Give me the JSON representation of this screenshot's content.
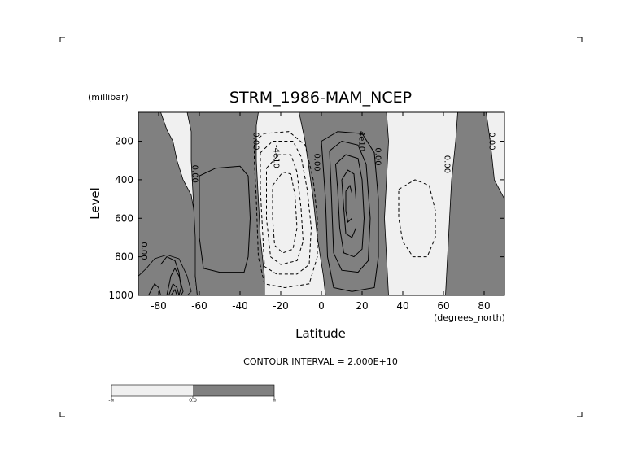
{
  "title": "STRM_1986-MAM_NCEP",
  "y_unit_label": "(millibar)",
  "x_unit_label": "(degrees_north)",
  "xlabel": "Latitude",
  "ylabel": "Level",
  "footer_text": "CONTOUR INTERVAL = 2.000E+10",
  "colors": {
    "positive_fill": "#808080",
    "negative_fill": "#f0f0f0",
    "line": "#000000"
  },
  "colorbar": {
    "labels": [
      "-∞",
      "0.0",
      "∞"
    ]
  },
  "chart_data": {
    "type": "contour",
    "title": "STRM_1986-MAM_NCEP",
    "xlabel": "Latitude",
    "ylabel": "Level",
    "x_units": "(degrees_north)",
    "y_units": "(millibar)",
    "xlim": [
      -90,
      90
    ],
    "ylim": [
      1000,
      50
    ],
    "x_ticks": [
      -80,
      -60,
      -40,
      -20,
      0,
      20,
      40,
      60,
      80
    ],
    "x_tick_labels": [
      "-80",
      "-60",
      "-40",
      "-20",
      "0",
      "20",
      "40",
      "60",
      "80"
    ],
    "y_ticks": [
      200,
      400,
      600,
      800,
      1000
    ],
    "y_tick_labels": [
      "200",
      "400",
      "600",
      "800",
      "1000"
    ],
    "contour_interval": 20000000000.0,
    "contour_labels": [
      {
        "text": "0.00",
        "lat": -62,
        "lev": 370
      },
      {
        "text": "0.00",
        "lat": -32,
        "lev": 200
      },
      {
        "text": "-4e10",
        "lat": -22,
        "lev": 280
      },
      {
        "text": "0.00",
        "lat": -2,
        "lev": 310
      },
      {
        "text": "4e10",
        "lat": 20,
        "lev": 200
      },
      {
        "text": "0.00",
        "lat": 28,
        "lev": 280
      },
      {
        "text": "0.00",
        "lat": 62,
        "lev": 320
      },
      {
        "text": "0.00",
        "lat": 84,
        "lev": 200
      },
      {
        "text": "0.00",
        "lat": -87,
        "lev": 770
      }
    ],
    "regions": [
      {
        "sign": "positive",
        "pts": [
          [
            -90,
            50
          ],
          [
            -79,
            50
          ],
          [
            -76,
            140
          ],
          [
            -73,
            200
          ],
          [
            -71,
            300
          ],
          [
            -68,
            400
          ],
          [
            -64,
            480
          ],
          [
            -62,
            600
          ],
          [
            -61,
            700
          ],
          [
            -61,
            800
          ],
          [
            -62,
            900
          ],
          [
            -61,
            1000
          ],
          [
            -90,
            1000
          ],
          [
            -90,
            900
          ],
          [
            -86,
            860
          ],
          [
            -82,
            810
          ],
          [
            -76,
            790
          ],
          [
            -70,
            810
          ],
          [
            -66,
            900
          ],
          [
            -64,
            980
          ],
          [
            -66,
            1000
          ],
          [
            -90,
            1000
          ],
          [
            -90,
            50
          ]
        ]
      },
      {
        "sign": "positive",
        "pts": [
          [
            -66,
            50
          ],
          [
            -31,
            50
          ],
          [
            -32,
            120
          ],
          [
            -32,
            300
          ],
          [
            -31,
            500
          ],
          [
            -30,
            700
          ],
          [
            -28,
            900
          ],
          [
            -28,
            1000
          ],
          [
            -61,
            1000
          ],
          [
            -62,
            900
          ],
          [
            -62,
            700
          ],
          [
            -63,
            500
          ],
          [
            -64,
            300
          ],
          [
            -64,
            150
          ],
          [
            -66,
            50
          ]
        ]
      },
      {
        "sign": "positive",
        "pts": [
          [
            -11,
            50
          ],
          [
            32,
            50
          ],
          [
            33,
            200
          ],
          [
            32,
            400
          ],
          [
            31,
            600
          ],
          [
            32,
            800
          ],
          [
            33,
            1000
          ],
          [
            2,
            1000
          ],
          [
            1,
            900
          ],
          [
            -2,
            700
          ],
          [
            -4,
            500
          ],
          [
            -6,
            350
          ],
          [
            -8,
            200
          ],
          [
            -11,
            50
          ]
        ]
      },
      {
        "sign": "positive",
        "pts": [
          [
            67,
            50
          ],
          [
            81,
            50
          ],
          [
            83,
            200
          ],
          [
            85,
            400
          ],
          [
            90,
            500
          ],
          [
            90,
            1000
          ],
          [
            61,
            1000
          ],
          [
            62,
            800
          ],
          [
            63,
            600
          ],
          [
            64,
            400
          ],
          [
            66,
            200
          ],
          [
            67,
            50
          ]
        ]
      }
    ],
    "contours": [
      {
        "style": "solid",
        "pts": [
          [
            -60,
            380
          ],
          [
            -52,
            340
          ],
          [
            -40,
            330
          ],
          [
            -36,
            380
          ],
          [
            -35,
            600
          ],
          [
            -36,
            800
          ],
          [
            -38,
            880
          ],
          [
            -50,
            880
          ],
          [
            -58,
            860
          ],
          [
            -60,
            700
          ],
          [
            -60,
            500
          ],
          [
            -60,
            380
          ]
        ]
      },
      {
        "style": "solid",
        "pts": [
          [
            -76,
            1000
          ],
          [
            -74,
            900
          ],
          [
            -72,
            860
          ],
          [
            -70,
            900
          ],
          [
            -68,
            980
          ],
          [
            -69,
            1000
          ]
        ]
      },
      {
        "style": "solid",
        "pts": [
          [
            -75,
            1000
          ],
          [
            -73,
            940
          ],
          [
            -71,
            960
          ],
          [
            -70,
            1000
          ]
        ]
      },
      {
        "style": "solid",
        "pts": [
          [
            -74,
            1000
          ],
          [
            -72,
            970
          ],
          [
            -71,
            1000
          ]
        ]
      },
      {
        "style": "solid",
        "pts": [
          [
            -85,
            1000
          ],
          [
            -82,
            940
          ],
          [
            -80,
            960
          ],
          [
            -79,
            1000
          ]
        ]
      },
      {
        "style": "solid",
        "pts": [
          [
            -79,
            840
          ],
          [
            -76,
            800
          ],
          [
            -72,
            820
          ],
          [
            -70,
            880
          ],
          [
            -69,
            960
          ],
          [
            -70,
            1000
          ]
        ]
      },
      {
        "style": "solid",
        "pts": [
          [
            0,
            200
          ],
          [
            8,
            150
          ],
          [
            20,
            160
          ],
          [
            26,
            260
          ],
          [
            28,
            500
          ],
          [
            28,
            800
          ],
          [
            26,
            960
          ],
          [
            15,
            980
          ],
          [
            6,
            960
          ],
          [
            3,
            800
          ],
          [
            2,
            500
          ],
          [
            0,
            200
          ]
        ]
      },
      {
        "style": "solid",
        "pts": [
          [
            4,
            250
          ],
          [
            10,
            200
          ],
          [
            18,
            220
          ],
          [
            22,
            320
          ],
          [
            24,
            600
          ],
          [
            23,
            820
          ],
          [
            18,
            880
          ],
          [
            10,
            870
          ],
          [
            6,
            780
          ],
          [
            5,
            500
          ],
          [
            4,
            250
          ]
        ]
      },
      {
        "style": "solid",
        "pts": [
          [
            7,
            320
          ],
          [
            12,
            270
          ],
          [
            18,
            290
          ],
          [
            20,
            400
          ],
          [
            21,
            600
          ],
          [
            20,
            760
          ],
          [
            16,
            800
          ],
          [
            11,
            780
          ],
          [
            9,
            650
          ],
          [
            8,
            450
          ],
          [
            7,
            320
          ]
        ]
      },
      {
        "style": "solid",
        "pts": [
          [
            10,
            400
          ],
          [
            13,
            350
          ],
          [
            16,
            370
          ],
          [
            17,
            500
          ],
          [
            17,
            650
          ],
          [
            15,
            700
          ],
          [
            12,
            680
          ],
          [
            11,
            550
          ],
          [
            10,
            400
          ]
        ]
      },
      {
        "style": "solid",
        "pts": [
          [
            12,
            460
          ],
          [
            14,
            430
          ],
          [
            15,
            470
          ],
          [
            15,
            600
          ],
          [
            13,
            620
          ],
          [
            12,
            560
          ],
          [
            12,
            460
          ]
        ]
      },
      {
        "style": "dashed",
        "pts": [
          [
            -33,
            200
          ],
          [
            -28,
            160
          ],
          [
            -16,
            150
          ],
          [
            -8,
            220
          ],
          [
            -4,
            400
          ],
          [
            -2,
            600
          ],
          [
            -2,
            800
          ],
          [
            -6,
            940
          ],
          [
            -18,
            960
          ],
          [
            -28,
            940
          ],
          [
            -31,
            800
          ],
          [
            -32,
            500
          ],
          [
            -33,
            300
          ],
          [
            -33,
            200
          ]
        ]
      },
      {
        "style": "dashed",
        "pts": [
          [
            -30,
            260
          ],
          [
            -24,
            200
          ],
          [
            -14,
            200
          ],
          [
            -10,
            280
          ],
          [
            -7,
            450
          ],
          [
            -5,
            650
          ],
          [
            -6,
            840
          ],
          [
            -12,
            890
          ],
          [
            -22,
            890
          ],
          [
            -28,
            850
          ],
          [
            -29,
            650
          ],
          [
            -30,
            450
          ],
          [
            -30,
            260
          ]
        ]
      },
      {
        "style": "dashed",
        "pts": [
          [
            -27,
            340
          ],
          [
            -21,
            270
          ],
          [
            -15,
            270
          ],
          [
            -12,
            360
          ],
          [
            -10,
            550
          ],
          [
            -9,
            720
          ],
          [
            -12,
            820
          ],
          [
            -20,
            840
          ],
          [
            -25,
            800
          ],
          [
            -27,
            600
          ],
          [
            -27,
            340
          ]
        ]
      },
      {
        "style": "dashed",
        "pts": [
          [
            -24,
            430
          ],
          [
            -19,
            360
          ],
          [
            -15,
            370
          ],
          [
            -13,
            480
          ],
          [
            -12,
            650
          ],
          [
            -14,
            760
          ],
          [
            -19,
            780
          ],
          [
            -23,
            740
          ],
          [
            -24,
            600
          ],
          [
            -24,
            430
          ]
        ]
      },
      {
        "style": "dashed",
        "pts": [
          [
            38,
            450
          ],
          [
            46,
            400
          ],
          [
            53,
            430
          ],
          [
            56,
            560
          ],
          [
            56,
            700
          ],
          [
            52,
            800
          ],
          [
            45,
            800
          ],
          [
            40,
            720
          ],
          [
            38,
            600
          ],
          [
            38,
            450
          ]
        ]
      }
    ]
  }
}
